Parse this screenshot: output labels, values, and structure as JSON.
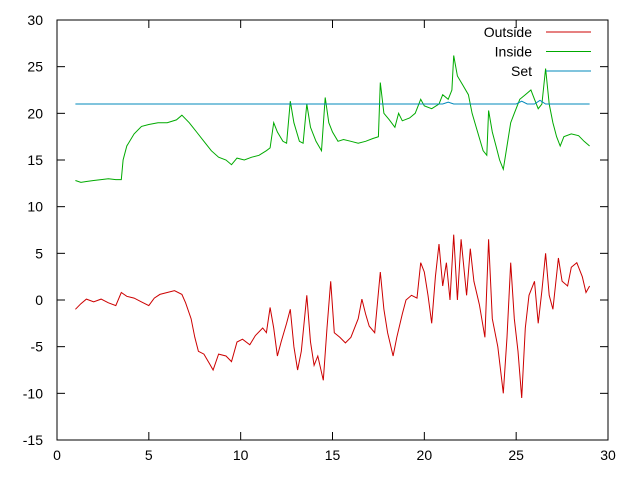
{
  "chart_data": {
    "type": "line",
    "title": "",
    "xlabel": "",
    "ylabel": "",
    "xlim": [
      0,
      30
    ],
    "ylim": [
      -15,
      30
    ],
    "xticks": [
      0,
      5,
      10,
      15,
      20,
      25,
      30
    ],
    "yticks": [
      -15,
      -10,
      -5,
      0,
      5,
      10,
      15,
      20,
      25,
      30
    ],
    "grid": false,
    "legend": "top-right",
    "series": [
      {
        "name": "Outside",
        "color": "#cc0000",
        "points": [
          [
            1.0,
            -1.0
          ],
          [
            1.3,
            -0.4
          ],
          [
            1.6,
            0.1
          ],
          [
            2.0,
            -0.2
          ],
          [
            2.4,
            0.1
          ],
          [
            2.8,
            -0.3
          ],
          [
            3.2,
            -0.6
          ],
          [
            3.5,
            0.8
          ],
          [
            3.8,
            0.4
          ],
          [
            4.2,
            0.2
          ],
          [
            4.6,
            -0.2
          ],
          [
            5.0,
            -0.6
          ],
          [
            5.3,
            0.2
          ],
          [
            5.6,
            0.6
          ],
          [
            6.0,
            0.8
          ],
          [
            6.4,
            1.0
          ],
          [
            6.8,
            0.6
          ],
          [
            7.0,
            -0.3
          ],
          [
            7.3,
            -2.0
          ],
          [
            7.5,
            -4.0
          ],
          [
            7.7,
            -5.5
          ],
          [
            8.0,
            -5.8
          ],
          [
            8.3,
            -6.8
          ],
          [
            8.5,
            -7.5
          ],
          [
            8.8,
            -5.8
          ],
          [
            9.2,
            -6.0
          ],
          [
            9.5,
            -6.6
          ],
          [
            9.8,
            -4.5
          ],
          [
            10.1,
            -4.2
          ],
          [
            10.5,
            -4.8
          ],
          [
            10.8,
            -3.8
          ],
          [
            11.2,
            -3.0
          ],
          [
            11.4,
            -3.5
          ],
          [
            11.6,
            -0.8
          ],
          [
            11.8,
            -3.0
          ],
          [
            12.0,
            -6.0
          ],
          [
            12.2,
            -4.5
          ],
          [
            12.5,
            -2.5
          ],
          [
            12.7,
            -1.0
          ],
          [
            12.9,
            -5.0
          ],
          [
            13.1,
            -7.5
          ],
          [
            13.3,
            -5.5
          ],
          [
            13.6,
            0.5
          ],
          [
            13.8,
            -4.5
          ],
          [
            14.0,
            -7.0
          ],
          [
            14.2,
            -6.0
          ],
          [
            14.5,
            -8.6
          ],
          [
            14.7,
            -3.0
          ],
          [
            14.9,
            2.0
          ],
          [
            15.1,
            -3.5
          ],
          [
            15.4,
            -4.0
          ],
          [
            15.7,
            -4.6
          ],
          [
            16.0,
            -4.0
          ],
          [
            16.4,
            -2.0
          ],
          [
            16.6,
            0.1
          ],
          [
            16.8,
            -1.5
          ],
          [
            17.0,
            -2.8
          ],
          [
            17.3,
            -3.5
          ],
          [
            17.6,
            3.0
          ],
          [
            17.8,
            -1.0
          ],
          [
            18.0,
            -3.5
          ],
          [
            18.3,
            -6.0
          ],
          [
            18.5,
            -4.0
          ],
          [
            18.8,
            -1.5
          ],
          [
            19.0,
            0.0
          ],
          [
            19.3,
            0.5
          ],
          [
            19.6,
            0.2
          ],
          [
            19.8,
            4.0
          ],
          [
            20.0,
            3.0
          ],
          [
            20.2,
            0.5
          ],
          [
            20.4,
            -2.5
          ],
          [
            20.6,
            2.5
          ],
          [
            20.8,
            6.0
          ],
          [
            21.0,
            1.5
          ],
          [
            21.2,
            4.0
          ],
          [
            21.4,
            0.0
          ],
          [
            21.6,
            7.0
          ],
          [
            21.8,
            0.0
          ],
          [
            22.0,
            6.5
          ],
          [
            22.3,
            0.5
          ],
          [
            22.5,
            5.5
          ],
          [
            22.7,
            2.0
          ],
          [
            23.0,
            -0.5
          ],
          [
            23.3,
            -4.0
          ],
          [
            23.5,
            6.5
          ],
          [
            23.7,
            -2.0
          ],
          [
            24.0,
            -5.0
          ],
          [
            24.3,
            -10.0
          ],
          [
            24.5,
            -4.0
          ],
          [
            24.7,
            4.0
          ],
          [
            24.9,
            -2.0
          ],
          [
            25.1,
            -5.5
          ],
          [
            25.3,
            -10.5
          ],
          [
            25.5,
            -3.0
          ],
          [
            25.7,
            0.5
          ],
          [
            26.0,
            2.0
          ],
          [
            26.2,
            -2.5
          ],
          [
            26.4,
            1.0
          ],
          [
            26.6,
            5.0
          ],
          [
            26.8,
            0.5
          ],
          [
            27.0,
            -1.0
          ],
          [
            27.3,
            4.5
          ],
          [
            27.5,
            2.0
          ],
          [
            27.8,
            1.5
          ],
          [
            28.0,
            3.5
          ],
          [
            28.3,
            4.0
          ],
          [
            28.6,
            2.5
          ],
          [
            28.8,
            0.8
          ],
          [
            29.0,
            1.5
          ]
        ]
      },
      {
        "name": "Inside",
        "color": "#00aa00",
        "points": [
          [
            1.0,
            12.8
          ],
          [
            1.3,
            12.6
          ],
          [
            1.6,
            12.7
          ],
          [
            2.0,
            12.8
          ],
          [
            2.4,
            12.9
          ],
          [
            2.8,
            13.0
          ],
          [
            3.2,
            12.9
          ],
          [
            3.5,
            12.9
          ],
          [
            3.6,
            15.0
          ],
          [
            3.8,
            16.5
          ],
          [
            4.2,
            17.8
          ],
          [
            4.6,
            18.6
          ],
          [
            5.0,
            18.8
          ],
          [
            5.5,
            19.0
          ],
          [
            6.0,
            19.0
          ],
          [
            6.5,
            19.3
          ],
          [
            6.8,
            19.8
          ],
          [
            7.2,
            19.0
          ],
          [
            7.6,
            18.0
          ],
          [
            8.0,
            17.0
          ],
          [
            8.4,
            16.0
          ],
          [
            8.8,
            15.3
          ],
          [
            9.2,
            15.0
          ],
          [
            9.5,
            14.5
          ],
          [
            9.8,
            15.2
          ],
          [
            10.2,
            15.0
          ],
          [
            10.6,
            15.3
          ],
          [
            11.0,
            15.5
          ],
          [
            11.4,
            16.0
          ],
          [
            11.6,
            16.3
          ],
          [
            11.8,
            19.0
          ],
          [
            12.0,
            18.0
          ],
          [
            12.3,
            17.0
          ],
          [
            12.5,
            16.8
          ],
          [
            12.7,
            21.3
          ],
          [
            12.9,
            19.0
          ],
          [
            13.2,
            17.0
          ],
          [
            13.4,
            16.8
          ],
          [
            13.6,
            21.0
          ],
          [
            13.8,
            18.5
          ],
          [
            14.1,
            17.0
          ],
          [
            14.4,
            16.0
          ],
          [
            14.6,
            21.7
          ],
          [
            14.8,
            19.0
          ],
          [
            15.0,
            18.0
          ],
          [
            15.3,
            17.0
          ],
          [
            15.6,
            17.2
          ],
          [
            16.0,
            17.0
          ],
          [
            16.4,
            16.8
          ],
          [
            16.8,
            17.0
          ],
          [
            17.2,
            17.3
          ],
          [
            17.5,
            17.5
          ],
          [
            17.6,
            23.3
          ],
          [
            17.8,
            20.0
          ],
          [
            18.1,
            19.3
          ],
          [
            18.4,
            18.5
          ],
          [
            18.6,
            20.0
          ],
          [
            18.8,
            19.2
          ],
          [
            19.2,
            19.5
          ],
          [
            19.5,
            20.0
          ],
          [
            19.8,
            21.5
          ],
          [
            20.0,
            20.8
          ],
          [
            20.4,
            20.5
          ],
          [
            20.8,
            21.0
          ],
          [
            21.0,
            22.0
          ],
          [
            21.3,
            21.5
          ],
          [
            21.5,
            22.5
          ],
          [
            21.6,
            26.2
          ],
          [
            21.8,
            24.0
          ],
          [
            22.1,
            23.0
          ],
          [
            22.4,
            22.0
          ],
          [
            22.6,
            20.0
          ],
          [
            22.9,
            18.0
          ],
          [
            23.2,
            16.0
          ],
          [
            23.4,
            15.5
          ],
          [
            23.5,
            20.3
          ],
          [
            23.7,
            18.0
          ],
          [
            23.9,
            16.5
          ],
          [
            24.1,
            15.0
          ],
          [
            24.3,
            14.0
          ],
          [
            24.5,
            16.5
          ],
          [
            24.7,
            19.0
          ],
          [
            24.9,
            20.0
          ],
          [
            25.2,
            21.5
          ],
          [
            25.5,
            22.0
          ],
          [
            25.8,
            22.5
          ],
          [
            26.0,
            21.5
          ],
          [
            26.2,
            20.5
          ],
          [
            26.4,
            21.0
          ],
          [
            26.6,
            24.8
          ],
          [
            26.8,
            21.0
          ],
          [
            27.0,
            19.0
          ],
          [
            27.2,
            17.5
          ],
          [
            27.4,
            16.5
          ],
          [
            27.6,
            17.5
          ],
          [
            28.0,
            17.8
          ],
          [
            28.4,
            17.6
          ],
          [
            28.7,
            17.0
          ],
          [
            29.0,
            16.5
          ]
        ]
      },
      {
        "name": "Set",
        "color": "#0088bb",
        "points": [
          [
            1.0,
            21.0
          ],
          [
            21.0,
            21.0
          ],
          [
            21.3,
            21.2
          ],
          [
            21.6,
            21.0
          ],
          [
            25.0,
            21.0
          ],
          [
            25.3,
            21.3
          ],
          [
            25.6,
            21.0
          ],
          [
            26.0,
            21.0
          ],
          [
            26.3,
            21.4
          ],
          [
            26.6,
            21.0
          ],
          [
            29.0,
            21.0
          ]
        ]
      }
    ]
  }
}
